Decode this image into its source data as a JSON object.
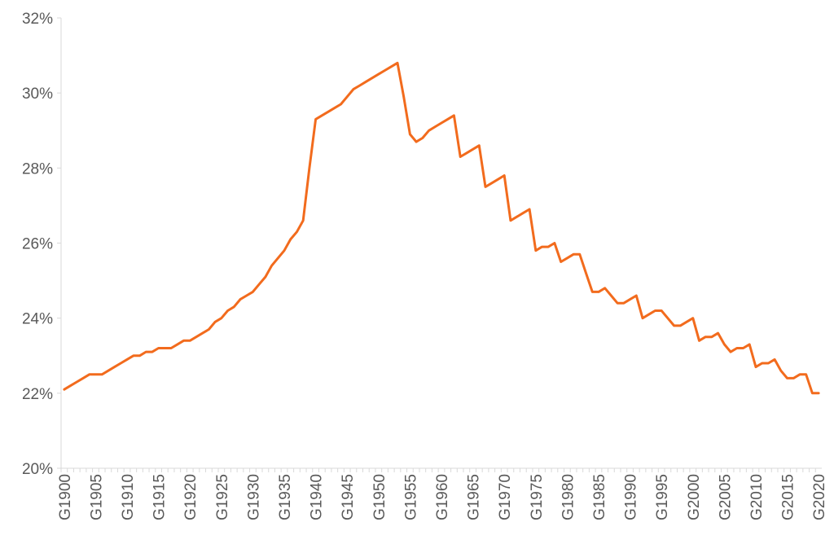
{
  "chart_data": {
    "type": "line",
    "title": "",
    "xlabel": "",
    "ylabel": "",
    "ylim": [
      0.2,
      0.32
    ],
    "y_ticks": [
      0.2,
      0.22,
      0.24,
      0.26,
      0.28,
      0.3,
      0.32
    ],
    "y_tick_labels": [
      "20%",
      "22%",
      "24%",
      "26%",
      "28%",
      "30%",
      "32%"
    ],
    "x_tick_labels": [
      "G1900",
      "G1905",
      "G1910",
      "G1915",
      "G1920",
      "G1925",
      "G1930",
      "G1935",
      "G1940",
      "G1945",
      "G1950",
      "G1955",
      "G1960",
      "G1965",
      "G1970",
      "G1975",
      "G1980",
      "G1985",
      "G1990",
      "G1995",
      "G2000",
      "G2005",
      "G2010",
      "G2015",
      "G2020"
    ],
    "x_tick_years": [
      1900,
      1905,
      1910,
      1915,
      1920,
      1925,
      1930,
      1935,
      1940,
      1945,
      1950,
      1955,
      1960,
      1965,
      1970,
      1975,
      1980,
      1985,
      1990,
      1995,
      2000,
      2005,
      2010,
      2015,
      2020
    ],
    "grid": false,
    "line_color": "#f26b1d",
    "series": [
      {
        "x": [
          1900,
          1901,
          1902,
          1903,
          1904,
          1905,
          1906,
          1907,
          1908,
          1909,
          1910,
          1911,
          1912,
          1913,
          1914,
          1915,
          1916,
          1917,
          1918,
          1919,
          1920,
          1921,
          1922,
          1923,
          1924,
          1925,
          1926,
          1927,
          1928,
          1929,
          1930,
          1931,
          1932,
          1933,
          1934,
          1935,
          1936,
          1937,
          1938,
          1939,
          1940,
          1941,
          1942,
          1943,
          1944,
          1945,
          1946,
          1947,
          1948,
          1949,
          1950,
          1951,
          1952,
          1953,
          1954,
          1955,
          1956,
          1957,
          1958,
          1959,
          1960,
          1961,
          1962,
          1963,
          1964,
          1965,
          1966,
          1967,
          1968,
          1969,
          1970,
          1971,
          1972,
          1973,
          1974,
          1975,
          1976,
          1977,
          1978,
          1979,
          1980,
          1981,
          1982,
          1983,
          1984,
          1985,
          1986,
          1987,
          1988,
          1989,
          1990,
          1991,
          1992,
          1993,
          1994,
          1995,
          1996,
          1997,
          1998,
          1999,
          2000,
          2001,
          2002,
          2003,
          2004,
          2005,
          2006,
          2007,
          2008,
          2009,
          2010,
          2011,
          2012,
          2013,
          2014,
          2015,
          2016,
          2017,
          2018,
          2019,
          2020
        ],
        "values": [
          0.221,
          0.222,
          0.223,
          0.224,
          0.225,
          0.225,
          0.225,
          0.226,
          0.227,
          0.228,
          0.229,
          0.23,
          0.23,
          0.231,
          0.231,
          0.232,
          0.232,
          0.232,
          0.233,
          0.234,
          0.234,
          0.235,
          0.236,
          0.237,
          0.239,
          0.24,
          0.242,
          0.243,
          0.245,
          0.246,
          0.247,
          0.249,
          0.251,
          0.254,
          0.256,
          0.258,
          0.261,
          0.263,
          0.266,
          0.28,
          0.293,
          0.294,
          0.295,
          0.296,
          0.297,
          0.299,
          0.301,
          0.302,
          0.303,
          0.304,
          0.305,
          0.306,
          0.307,
          0.308,
          0.299,
          0.289,
          0.287,
          0.288,
          0.29,
          0.291,
          0.292,
          0.293,
          0.294,
          0.283,
          0.284,
          0.285,
          0.286,
          0.275,
          0.276,
          0.277,
          0.278,
          0.266,
          0.267,
          0.268,
          0.269,
          0.258,
          0.259,
          0.259,
          0.26,
          0.255,
          0.256,
          0.257,
          0.257,
          0.252,
          0.247,
          0.247,
          0.248,
          0.246,
          0.244,
          0.244,
          0.245,
          0.246,
          0.24,
          0.241,
          0.242,
          0.242,
          0.24,
          0.238,
          0.238,
          0.239,
          0.24,
          0.234,
          0.235,
          0.235,
          0.236,
          0.233,
          0.231,
          0.232,
          0.232,
          0.233,
          0.227,
          0.228,
          0.228,
          0.229,
          0.226,
          0.224,
          0.224,
          0.225,
          0.225,
          0.22,
          0.22
        ]
      }
    ]
  }
}
